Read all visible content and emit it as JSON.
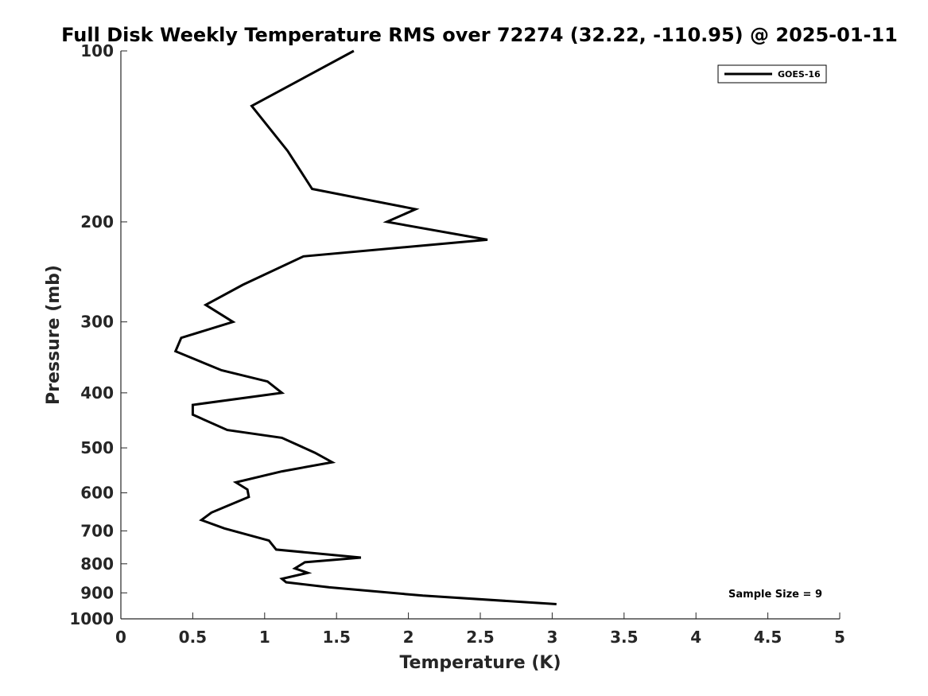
{
  "chart_data": {
    "type": "line",
    "title": "Full Disk Weekly Temperature RMS over 72274 (32.22, -110.95) @ 2025-01-11",
    "xlabel": "Temperature (K)",
    "ylabel": "Pressure (mb)",
    "xlim": [
      0,
      5
    ],
    "ylim": [
      100,
      1000
    ],
    "y_scale": "log",
    "y_reversed": true,
    "x_ticks": [
      0,
      0.5,
      1,
      1.5,
      2,
      2.5,
      3,
      3.5,
      4,
      4.5,
      5
    ],
    "x_tick_labels": [
      "0",
      "0.5",
      "1",
      "1.5",
      "2",
      "2.5",
      "3",
      "3.5",
      "4",
      "4.5",
      "5"
    ],
    "y_ticks": [
      100,
      200,
      300,
      400,
      500,
      600,
      700,
      800,
      900,
      1000
    ],
    "y_tick_labels": [
      "100",
      "200",
      "300",
      "400",
      "500",
      "600",
      "700",
      "800",
      "900",
      "1000"
    ],
    "legend": {
      "position": "top-right",
      "entries": [
        "GOES-16"
      ]
    },
    "annotation": "Sample Size = 9",
    "series": [
      {
        "name": "GOES-16",
        "color": "#000000",
        "points": [
          {
            "x": 1.62,
            "p": 100
          },
          {
            "x": 0.91,
            "p": 125
          },
          {
            "x": 1.16,
            "p": 150
          },
          {
            "x": 1.33,
            "p": 175
          },
          {
            "x": 2.05,
            "p": 190
          },
          {
            "x": 1.85,
            "p": 200
          },
          {
            "x": 2.55,
            "p": 215
          },
          {
            "x": 1.27,
            "p": 230
          },
          {
            "x": 0.85,
            "p": 258
          },
          {
            "x": 0.59,
            "p": 280
          },
          {
            "x": 0.78,
            "p": 300
          },
          {
            "x": 0.42,
            "p": 320
          },
          {
            "x": 0.38,
            "p": 338
          },
          {
            "x": 0.7,
            "p": 365
          },
          {
            "x": 1.02,
            "p": 382
          },
          {
            "x": 1.12,
            "p": 400
          },
          {
            "x": 0.5,
            "p": 420
          },
          {
            "x": 0.5,
            "p": 437
          },
          {
            "x": 0.74,
            "p": 465
          },
          {
            "x": 1.12,
            "p": 480
          },
          {
            "x": 1.35,
            "p": 510
          },
          {
            "x": 1.47,
            "p": 530
          },
          {
            "x": 1.12,
            "p": 550
          },
          {
            "x": 0.8,
            "p": 575
          },
          {
            "x": 0.88,
            "p": 592
          },
          {
            "x": 0.89,
            "p": 610
          },
          {
            "x": 0.63,
            "p": 650
          },
          {
            "x": 0.56,
            "p": 670
          },
          {
            "x": 0.72,
            "p": 693
          },
          {
            "x": 1.03,
            "p": 728
          },
          {
            "x": 1.08,
            "p": 755
          },
          {
            "x": 1.67,
            "p": 780
          },
          {
            "x": 1.28,
            "p": 795
          },
          {
            "x": 1.21,
            "p": 815
          },
          {
            "x": 1.3,
            "p": 830
          },
          {
            "x": 1.12,
            "p": 850
          },
          {
            "x": 1.15,
            "p": 862
          },
          {
            "x": 1.45,
            "p": 880
          },
          {
            "x": 2.1,
            "p": 910
          },
          {
            "x": 3.03,
            "p": 942
          }
        ]
      }
    ]
  }
}
